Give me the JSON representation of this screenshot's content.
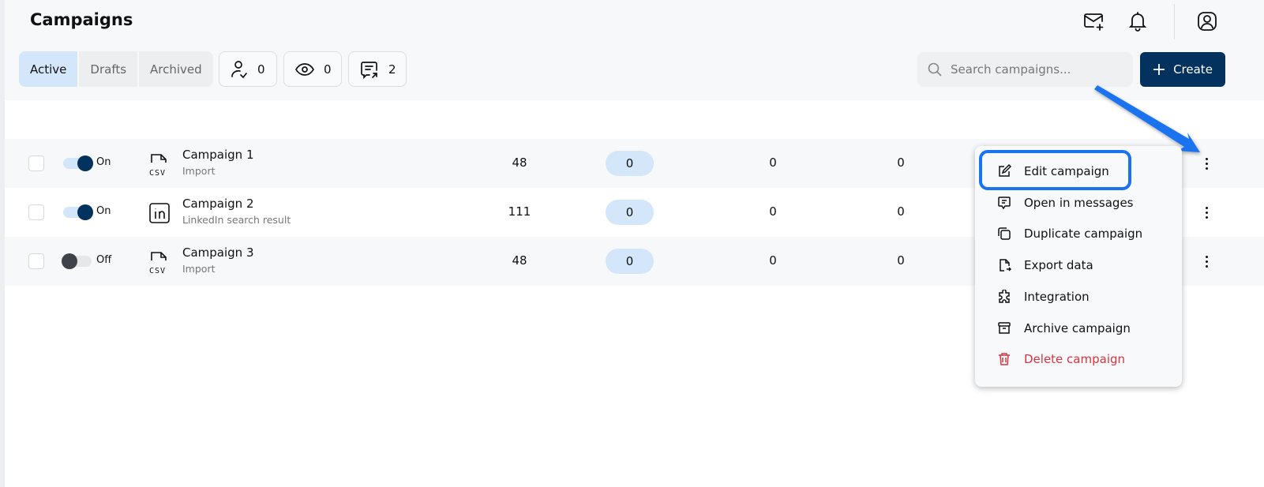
{
  "header": {
    "title": "Campaigns",
    "icons": [
      "mail-plus-icon",
      "bell-icon",
      "user-circle-icon"
    ]
  },
  "tabs": [
    {
      "label": "Active",
      "active": true
    },
    {
      "label": "Drafts",
      "active": false
    },
    {
      "label": "Archived",
      "active": false
    }
  ],
  "stats": [
    {
      "icon": "user-check-icon",
      "value": "0"
    },
    {
      "icon": "eye-icon",
      "value": "0"
    },
    {
      "icon": "message-reply-icon",
      "value": "2"
    }
  ],
  "search": {
    "placeholder": "Search campaigns...",
    "value": ""
  },
  "create_label": "Create",
  "rows": [
    {
      "toggle": "On",
      "on": true,
      "source_icon": "csv-icon",
      "name": "Campaign 1",
      "source": "Import",
      "c1": "48",
      "c2": "0",
      "c3": "0",
      "c4": "0"
    },
    {
      "toggle": "On",
      "on": true,
      "source_icon": "linkedin-icon",
      "name": "Campaign 2",
      "source": "LinkedIn search result",
      "c1": "111",
      "c2": "0",
      "c3": "0",
      "c4": "0"
    },
    {
      "toggle": "Off",
      "on": false,
      "source_icon": "csv-icon",
      "name": "Campaign 3",
      "source": "Import",
      "c1": "48",
      "c2": "0",
      "c3": "0",
      "c4": "0"
    }
  ],
  "menu": [
    {
      "label": "Edit campaign",
      "icon": "pencil-icon",
      "highlighted": true
    },
    {
      "label": "Open in messages",
      "icon": "message-icon"
    },
    {
      "label": "Duplicate campaign",
      "icon": "copy-icon"
    },
    {
      "label": "Export data",
      "icon": "file-export-icon"
    },
    {
      "label": "Integration",
      "icon": "puzzle-icon"
    },
    {
      "label": "Archive campaign",
      "icon": "archive-icon"
    },
    {
      "label": "Delete campaign",
      "icon": "trash-icon",
      "danger": true
    }
  ],
  "colors": {
    "primary": "#03325f",
    "accent_light": "#d3e6fa",
    "highlight": "#1a73f0",
    "danger": "#d9343e"
  }
}
